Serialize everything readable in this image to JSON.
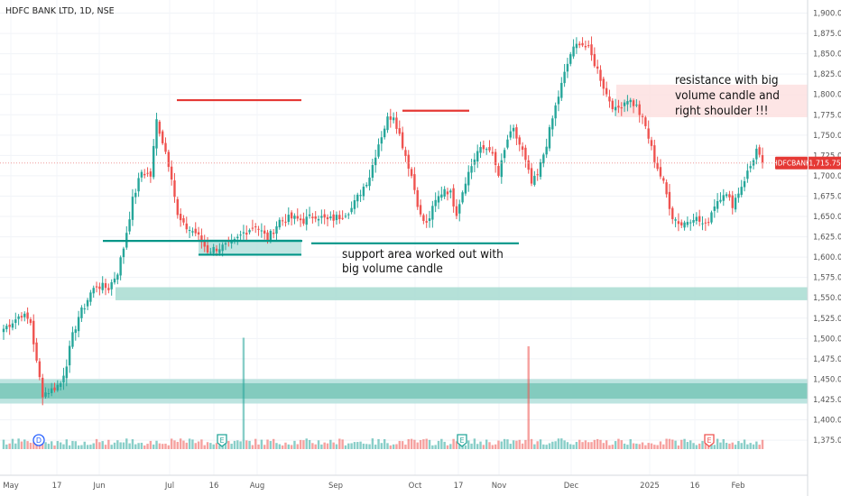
{
  "title": "HDFC BANK LTD, 1D, NSE",
  "colors": {
    "up": "#26a69a",
    "down": "#ef5350",
    "price_tag": "#e53935",
    "annotation_red": "#e53935",
    "annotation_green": "#009688"
  },
  "chart_data": {
    "type": "candlestick",
    "title": "HDFC BANK LTD, 1D, NSE",
    "symbol": "HDFCBANK",
    "last_price": "1,715.75",
    "ylim": [
      1355,
      1915
    ],
    "y_ticks": [
      "1,375.00",
      "1,400.00",
      "1,425.00",
      "1,450.00",
      "1,475.00",
      "1,500.00",
      "1,525.00",
      "1,550.00",
      "1,575.00",
      "1,600.00",
      "1,625.00",
      "1,650.00",
      "1,675.00",
      "1,700.00",
      "1,725.00",
      "1,750.00",
      "1,775.00",
      "1,800.00",
      "1,825.00",
      "1,850.00",
      "1,875.00",
      "1,900.00"
    ],
    "x_ticks": [
      "May",
      "17",
      "Jun",
      "Jul",
      "16",
      "Aug",
      "Sep",
      "Oct",
      "17",
      "Nov",
      "Dec",
      "2025",
      "16",
      "Feb"
    ],
    "grid": true,
    "annotations": [
      {
        "text": "support area worked out with big volume candle",
        "lines": [
          "support area worked out with",
          "big volume candle"
        ]
      },
      {
        "text": "resistance with big volume candle and right shoulder !!!",
        "lines": [
          "resistance with big",
          "volume candle and",
          "right shoulder !!!"
        ]
      }
    ],
    "event_markers": [
      "D",
      "E",
      "E",
      "E"
    ],
    "key_levels": [
      1793,
      1780,
      1620,
      1603,
      1555,
      1437
    ],
    "resistance_zone": [
      1772,
      1812
    ],
    "path_keypoints": [
      [
        0,
        1512
      ],
      [
        6,
        1530
      ],
      [
        9,
        1520
      ],
      [
        11,
        1470
      ],
      [
        13,
        1432
      ],
      [
        16,
        1437
      ],
      [
        19,
        1445
      ],
      [
        21,
        1470
      ],
      [
        23,
        1503
      ],
      [
        25,
        1527
      ],
      [
        27,
        1540
      ],
      [
        29,
        1556
      ],
      [
        31,
        1565
      ],
      [
        35,
        1562
      ],
      [
        38,
        1582
      ],
      [
        40,
        1612
      ],
      [
        43,
        1670
      ],
      [
        46,
        1705
      ],
      [
        49,
        1700
      ],
      [
        51,
        1768
      ],
      [
        54,
        1730
      ],
      [
        56,
        1700
      ],
      [
        58,
        1650
      ],
      [
        60,
        1638
      ],
      [
        64,
        1630
      ],
      [
        68,
        1608
      ],
      [
        72,
        1612
      ],
      [
        76,
        1615
      ],
      [
        80,
        1630
      ],
      [
        84,
        1640
      ],
      [
        88,
        1622
      ],
      [
        92,
        1645
      ],
      [
        96,
        1648
      ],
      [
        100,
        1645
      ],
      [
        104,
        1652
      ],
      [
        108,
        1645
      ],
      [
        112,
        1650
      ],
      [
        116,
        1660
      ],
      [
        119,
        1680
      ],
      [
        122,
        1700
      ],
      [
        125,
        1740
      ],
      [
        128,
        1770
      ],
      [
        130,
        1775
      ],
      [
        133,
        1738
      ],
      [
        136,
        1700
      ],
      [
        139,
        1650
      ],
      [
        141,
        1640
      ],
      [
        144,
        1668
      ],
      [
        147,
        1685
      ],
      [
        149,
        1678
      ],
      [
        151,
        1655
      ],
      [
        154,
        1695
      ],
      [
        158,
        1730
      ],
      [
        162,
        1735
      ],
      [
        165,
        1700
      ],
      [
        168,
        1745
      ],
      [
        170,
        1755
      ],
      [
        173,
        1730
      ],
      [
        176,
        1690
      ],
      [
        178,
        1700
      ],
      [
        181,
        1740
      ],
      [
        184,
        1785
      ],
      [
        187,
        1825
      ],
      [
        189,
        1850
      ],
      [
        192,
        1865
      ],
      [
        195,
        1855
      ],
      [
        198,
        1830
      ],
      [
        201,
        1800
      ],
      [
        204,
        1780
      ],
      [
        208,
        1795
      ],
      [
        211,
        1785
      ],
      [
        214,
        1760
      ],
      [
        217,
        1720
      ],
      [
        220,
        1690
      ],
      [
        223,
        1650
      ],
      [
        226,
        1640
      ],
      [
        230,
        1650
      ],
      [
        234,
        1638
      ],
      [
        237,
        1665
      ],
      [
        240,
        1680
      ],
      [
        243,
        1665
      ],
      [
        246,
        1688
      ],
      [
        249,
        1712
      ],
      [
        251,
        1732
      ],
      [
        253,
        1712
      ]
    ],
    "volume_spikes": [
      [
        80,
        6.5
      ],
      [
        175,
        6.0
      ]
    ]
  }
}
